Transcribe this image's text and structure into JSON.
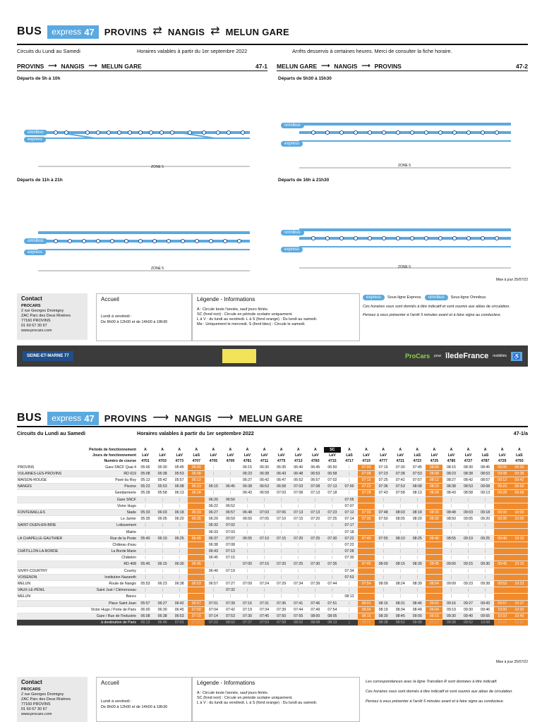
{
  "brand": {
    "bus": "BUS",
    "express": "express",
    "line": "47"
  },
  "header": {
    "from": "PROVINS",
    "via": "NANGIS",
    "to": "MELUN GARE"
  },
  "info": {
    "days": "Circuits du Lundi au Samedi",
    "valid": "Horaires valables à partir du 1er septembre 2022",
    "notice": "Arrêts desservis à certaines heures. Merci de consulter la fiche horaire."
  },
  "dir1": {
    "a": "PROVINS",
    "b": "NANGIS",
    "c": "MELUN GARE",
    "num": "47-1"
  },
  "dir2": {
    "a": "MELUN GARE",
    "b": "NANGIS",
    "c": "PROVINS",
    "num": "47-2"
  },
  "deps": {
    "d1": "Départs de 5h à 10h",
    "d2": "Départs de 5h30 à 15h30",
    "d3": "Départs de 11h à 21h",
    "d4": "Départs de 16h à 21h30"
  },
  "labels": {
    "express": "express",
    "omnibus": "omnibus",
    "zone": "ZONE 5"
  },
  "update": "Mise à jour 25/07/22",
  "contact": {
    "title": "Contact",
    "company": "PROCARS",
    "address1": "2 rue Georges Dromigny",
    "address2": "ZAC Parc des Deux Rivières",
    "address3": "77160 PROVINS",
    "phone": "01 60 67 30 67",
    "web": "www.procars.com"
  },
  "accueil": {
    "title": "Accueil",
    "days": "Lundi à vendredi :",
    "hours": "De 8h00 à 12h00 et de 14h00 à 18h30"
  },
  "legend": {
    "title": "Légende - Informations",
    "a": "A : Circule toute l'année, sauf jours fériés.",
    "sc": "SC (fond noir) : Circule en période scolaire uniquement.",
    "lav": "L à V : du lundi au vendredi. L à S (fond orange) : Du lundi au samedi.",
    "me": "Me : Uniquement le mercredi. S (fond bleu) : Circule le samedi."
  },
  "notes": {
    "express": "Sous-ligne Express.",
    "omnibus": "Sous-ligne Omnibus.",
    "n1": "Ces horaires vous sont donnés à titre indicatif et sont soumis aux aléas de circulation.",
    "n2": "Pensez à vous présenter à l'arrêt 5 minutes avant et à faire signe au conducteur.",
    "transilien": "Les correspondances avec la ligne Transilien R sont données à titre indicatif."
  },
  "logos": {
    "dept": "SEINE-ET-MARNE 77",
    "procars": "ProCars",
    "pour": "pour",
    "idf": "îledeFrance",
    "mob": "mobilités"
  },
  "page2": {
    "from": "PROVINS",
    "via": "NANGIS",
    "to": "MELUN GARE",
    "days": "Circuits du Lundi au Samedi",
    "valid": "Horaires valables à partir du 1er septembre 2022",
    "num": "47-1/a"
  },
  "table": {
    "head": {
      "period": "Période de fonctionnement",
      "jours": "Jours de fonctionnement",
      "course": "Numéro de course",
      "periods": [
        "A",
        "A",
        "A",
        "A",
        "A",
        "A",
        "A",
        "A",
        "A",
        "A",
        "A",
        "SC",
        "A",
        "A",
        "A",
        "A",
        "A",
        "A",
        "A",
        "A",
        "A",
        "A",
        "A"
      ],
      "days": [
        "LàV",
        "LàV",
        "LàV",
        "LàS",
        "LàV",
        "LàV",
        "LàV",
        "LàV",
        "LàV",
        "LàV",
        "LàV",
        "LàV",
        "LàS",
        "LàV",
        "LàV",
        "LàV",
        "LàS",
        "LàV",
        "LàV",
        "LàV",
        "LàS",
        "LàV",
        "LàS"
      ],
      "courses": [
        "4701",
        "4703",
        "4773",
        "4707",
        "4705",
        "4709",
        "4781",
        "4711",
        "4775",
        "4713",
        "4783",
        "4715",
        "4717",
        "4719",
        "4777",
        "4721",
        "4723",
        "4725",
        "4785",
        "4727",
        "4787",
        "4729",
        "4793"
      ]
    },
    "rows": [
      {
        "city": "PROVINS",
        "stop": "Gare SNCF Quai 4",
        "t": [
          "05:00",
          "05:30",
          "05:45",
          "06:00",
          "",
          "",
          "06:15",
          "06:30",
          "06:35",
          "06:40",
          "06:45",
          "06:50",
          "",
          "07:00",
          "07:15",
          "07:30",
          "07:45",
          "08:00",
          "08:15",
          "08:30",
          "08:45",
          "09:00",
          "09:30"
        ]
      },
      {
        "city": "VULAINES-LES-PROVINS",
        "stop": "RD 619",
        "t": [
          "05:08",
          "05:38",
          "05:53",
          "06:08",
          "",
          "",
          "06:23",
          "06:38",
          "06:43",
          "06:48",
          "06:53",
          "06:58",
          "",
          "07:08",
          "07:23",
          "07:38",
          "07:53",
          "08:08",
          "08:23",
          "08:38",
          "08:53",
          "09:08",
          "09:38"
        ]
      },
      {
        "city": "MAISON-ROUGE",
        "stop": "Pavé du Roy",
        "t": [
          "05:12",
          "05:42",
          "05:57",
          "06:12",
          "",
          "",
          "06:27",
          "06:42",
          "06:47",
          "06:52",
          "06:57",
          "07:02",
          "",
          "07:12",
          "07:25",
          "07:42",
          "07:57",
          "08:12",
          "08:27",
          "08:42",
          "08:57",
          "09:12",
          "09:42"
        ]
      },
      {
        "city": "NANGIS",
        "stop": "Piscine",
        "t": [
          "05:23",
          "05:53",
          "06:08",
          "06:23",
          "06:15",
          "06:45",
          "06:38",
          "06:53",
          "06:58",
          "07:03",
          "07:08",
          "07:13",
          "07:00",
          "07:23",
          "07:36",
          "07:53",
          "08:08",
          "08:23",
          "08:38",
          "08:53",
          "09:08",
          "09:23",
          "09:53"
        ]
      },
      {
        "city": "",
        "stop": "Gendarmerie",
        "t": [
          "05:28",
          "05:58",
          "06:13",
          "06:28",
          "",
          "",
          "06:43",
          "06:58",
          "07:03",
          "07:08",
          "07:13",
          "07:18",
          "",
          "07:28",
          "07:43",
          "07:58",
          "08:13",
          "08:28",
          "08:43",
          "08:58",
          "09:13",
          "09:28",
          "09:58"
        ]
      },
      {
        "city": "",
        "stop": "Gare SNCF",
        "t": [
          "",
          "",
          "",
          "",
          "06:20",
          "06:50",
          "",
          "",
          "",
          "",
          "",
          "",
          "07:05",
          "",
          "",
          "",
          "",
          "",
          "",
          "",
          "",
          "",
          ""
        ]
      },
      {
        "city": "",
        "stop": "Victor Hugo",
        "t": [
          "",
          "",
          "",
          "",
          "06:22",
          "06:52",
          "",
          "",
          "",
          "",
          "",
          "",
          "07:07",
          "",
          "",
          "",
          "",
          "",
          "",
          "",
          "",
          "",
          ""
        ]
      },
      {
        "city": "FONTENAILLES",
        "stop": "Stade",
        "t": [
          "05:33",
          "06:03",
          "06:18",
          "06:33",
          "06:27",
          "06:57",
          "06:48",
          "07:03",
          "07:06",
          "07:13",
          "07:13",
          "07:23",
          "07:12",
          "07:33",
          "07:48",
          "08:03",
          "08:18",
          "08:33",
          "08:48",
          "09:03",
          "09:18",
          "09:33",
          "10:03"
        ]
      },
      {
        "city": "",
        "stop": "Le Jarrier",
        "t": [
          "05:35",
          "06:05",
          "06:20",
          "06:35",
          "06:29",
          "06:59",
          "06:50",
          "07:05",
          "07:10",
          "07:15",
          "07:20",
          "07:25",
          "07:14",
          "07:35",
          "07:50",
          "08:05",
          "08:20",
          "08:35",
          "08:50",
          "09:05",
          "09:20",
          "09:35",
          "10:05"
        ]
      },
      {
        "city": "SAINT-OUEN-EN-BRIE",
        "stop": "Lotissement",
        "t": [
          "",
          "",
          "",
          "",
          "06:32",
          "07:02",
          "",
          "",
          "",
          "",
          "",
          "",
          "07:17",
          "",
          "",
          "",
          "",
          "",
          "",
          "",
          "",
          "",
          ""
        ]
      },
      {
        "city": "",
        "stop": "Mairie",
        "t": [
          "",
          "",
          "",
          "",
          "06:33",
          "07:03",
          "",
          "",
          "",
          "",
          "",
          "",
          "07:18",
          "",
          "",
          "",
          "",
          "",
          "",
          "",
          "",
          "",
          ""
        ]
      },
      {
        "city": "LA CHAPELLE-GAUTHIER",
        "stop": "Rue de la Poste",
        "t": [
          "05:40",
          "06:10",
          "06:25",
          "06:40",
          "06:37",
          "07:07",
          "06:55",
          "07:10",
          "07:15",
          "07:20",
          "07:25",
          "07:30",
          "07:22",
          "07:40",
          "07:55",
          "08:10",
          "08:25",
          "08:40",
          "08:55",
          "09:10",
          "09:25",
          "09:40",
          "10:10"
        ]
      },
      {
        "city": "",
        "stop": "Château d'eau",
        "t": [
          "",
          "",
          "",
          "",
          "06:38",
          "07:08",
          "",
          "",
          "",
          "",
          "",
          "",
          "07:23",
          "",
          "",
          "",
          "",
          "",
          "",
          "",
          "",
          "",
          ""
        ]
      },
      {
        "city": "CHÂTILLON-LA-BORDE",
        "stop": "La Borde Marie",
        "t": [
          "",
          "",
          "",
          "",
          "06:43",
          "07:13",
          "",
          "",
          "",
          "",
          "",
          "",
          "07:28",
          "",
          "",
          "",
          "",
          "",
          "",
          "",
          "",
          "",
          ""
        ]
      },
      {
        "city": "",
        "stop": "Châtelon",
        "t": [
          "",
          "",
          "",
          "",
          "06:45",
          "07:15",
          "",
          "",
          "",
          "",
          "",
          "",
          "07:30",
          "",
          "",
          "",
          "",
          "",
          "",
          "",
          "",
          "",
          ""
        ]
      },
      {
        "city": "",
        "stop": "RD 408",
        "t": [
          "05:45",
          "06:15",
          "06:30",
          "06:45",
          "",
          "",
          "07:00",
          "07:15",
          "07:20",
          "07:25",
          "07:30",
          "07:35",
          "",
          "07:45",
          "08:00",
          "08:15",
          "08:30",
          "08:45",
          "09:00",
          "09:15",
          "09:30",
          "09:45",
          "10:15"
        ]
      },
      {
        "city": "SIVRY-COURTRY",
        "stop": "Courtry",
        "t": [
          "",
          "",
          "",
          "",
          "06:49",
          "07:19",
          "",
          "",
          "",
          "",
          "",
          "",
          "07:34",
          "",
          "",
          "",
          "",
          "",
          "",
          "",
          "",
          "",
          ""
        ]
      },
      {
        "city": "VOISENON",
        "stop": "Institution Nazareth",
        "t": [
          "",
          "",
          "",
          "",
          "",
          "",
          "",
          "",
          "",
          "",
          "",
          "",
          "07:53",
          "",
          "",
          "",
          "",
          "",
          "",
          "",
          "",
          "",
          ""
        ]
      },
      {
        "city": "MELUN",
        "stop": "Route de Nangis",
        "t": [
          "05:53",
          "06:23",
          "06:38",
          "06:53",
          "06:57",
          "07:27",
          "07:09",
          "07:24",
          "07:29",
          "07:34",
          "07:39",
          "07:44",
          "",
          "07:54",
          "08:09",
          "08:24",
          "08:39",
          "08:54",
          "09:09",
          "09:23",
          "09:38",
          "09:53",
          "10:23"
        ]
      },
      {
        "city": "VAUX-LE-PÉNIL",
        "stop": "Saint Just / Clémenceau",
        "t": [
          "",
          "",
          "",
          "",
          "",
          "07:32",
          "",
          "",
          "",
          "",
          "",
          "",
          "",
          "",
          "",
          "",
          "",
          "",
          "",
          "",
          "",
          "",
          ""
        ]
      },
      {
        "city": "MELUN",
        "stop": "Bancs",
        "t": [
          "",
          "",
          "",
          "",
          "",
          "",
          "",
          "",
          "",
          "",
          "",
          "",
          "08:13",
          "",
          "",
          "",
          "",
          "",
          "",
          "",
          "",
          "",
          ""
        ]
      },
      {
        "city": "",
        "stop": "Place Saint Jean",
        "t": [
          "05:57",
          "06:27",
          "06:42",
          "06:57",
          "07:01",
          "07:39",
          "07:16",
          "07:31",
          "07:36",
          "07:41",
          "07:46",
          "07:51",
          "",
          "08:01",
          "08:16",
          "08:31",
          "08:46",
          "09:01",
          "09:16",
          "09:27",
          "09:43",
          "09:57",
          "10:27"
        ]
      },
      {
        "city": "",
        "stop": "Victor Hugo / Porte de Paris",
        "t": [
          "06:00",
          "06:30",
          "06:45",
          "07:00",
          "07:04",
          "07:42",
          "07:19",
          "07:34",
          "07:39",
          "07:44",
          "07:49",
          "07:54",
          "",
          "08:04",
          "08:19",
          "08:34",
          "08:49",
          "09:04",
          "09:19",
          "09:30",
          "09:46",
          "10:00",
          "10:30"
        ]
      },
      {
        "city": "",
        "stop": "Gare / Rue de l'Industrie",
        "t": [
          "06:08",
          "06:38",
          "06:53",
          "07:10",
          "07:14",
          "07:53",
          "07:30",
          "07:45",
          "07:50",
          "07:55",
          "08:00",
          "08:05",
          "",
          "08:15",
          "08:30",
          "08:45",
          "09:00",
          "09:15",
          "09:30",
          "09:40",
          "09:55",
          "10:10",
          "10:40"
        ]
      },
      {
        "city": "",
        "stop": "à destination de Paris",
        "t": [
          "06:13",
          "06:46",
          "07:01",
          "07:20",
          "07:22",
          "08:02",
          "07:37",
          "07:53",
          "07:58",
          "08:02",
          "08:08",
          "08:13",
          "",
          "08:22",
          "08:38",
          "08:52",
          "09:08",
          "09:22",
          "09:38",
          "09:52",
          "10:08",
          "10:22",
          "10:52"
        ]
      }
    ]
  },
  "colors": {
    "blue": "#5aa9e0",
    "orange": "#f28a2a",
    "dark": "#3b3b3b"
  }
}
